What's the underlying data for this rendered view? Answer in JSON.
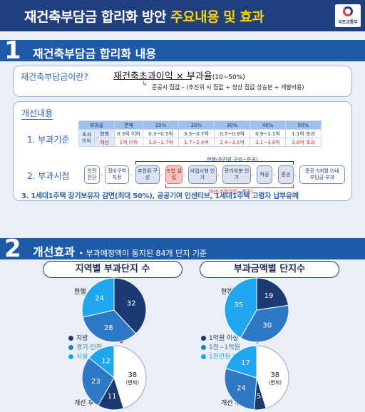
{
  "header": {
    "title_main": "재건축부담금 합리화 방안 ",
    "title_highlight": "주요내용 및 효과",
    "logo_text": "국토교통부"
  },
  "section1": {
    "num": "1",
    "title": "재건축부담금 합리화 내용"
  },
  "definition": {
    "label": "재건축부담금이란?",
    "formula_main": "재건축초과이익 × 부과율",
    "formula_range": "(10~50%)",
    "sub_lead": "준공시 집값",
    "sub_rest": " – (추진위 시 집값 + 정상 집값 상승분 + 개발비용)"
  },
  "improvement": {
    "label": "개선내용",
    "item1": "1. 부과기준",
    "item2": "2. 부과시점",
    "item3": "3. 1세대1주택 장기보유자 감면(최대 50%), 공공기여 인센티브, 1세대1주택 고령자 납부유예"
  },
  "rate_table": {
    "headers": [
      "부과율",
      "면제",
      "10%",
      "20%",
      "30%",
      "40%",
      "50%"
    ],
    "row_group": "초과이익",
    "current": {
      "label": "현행",
      "values": [
        "0.3억 이하",
        "0.3~0.5억",
        "0.5~0.7억",
        "0.7~0.9억",
        "0.9~1.1억",
        "1.1억 초과"
      ]
    },
    "improved": {
      "label": "개선",
      "values": [
        "1억 이하",
        "1.0~1.7억",
        "1.7~2.4억",
        "2.4~3.1억",
        "3.1~3.8억",
        "3.8억 초과"
      ]
    }
  },
  "timeline": {
    "current_note": "현행(추진위 구성~준공)",
    "improved_note": "개선(조합설립~준공)",
    "steps": [
      "안전 진단",
      "정비구역 지정",
      "추진위 구성",
      "조합 설립",
      "사업시행 인가",
      "관리처분 인가",
      "착공",
      "준공",
      "준공 5개월 이내 부담금 부과"
    ]
  },
  "section2": {
    "num": "2",
    "title": "개선효과",
    "subtitle": "• 부과예정액이 통지된 84개 단지 기준"
  },
  "effects": {
    "left": {
      "title": "지역별 부과단지 수",
      "current_label": "현행",
      "after_label": "개선 후",
      "legend": [
        "지방",
        "경기·인천",
        "서울"
      ]
    },
    "right": {
      "title": "부과금액별 단지수",
      "current_label": "현행",
      "after_label": "개선 후",
      "legend": [
        "1억원 이상",
        "1천~1억원",
        "1천만원 이하"
      ]
    }
  },
  "chart_data": [
    {
      "type": "pie",
      "title": "지역별 부과단지 수 - 현행",
      "labels": [
        "지방",
        "경기·인천",
        "서울"
      ],
      "values": [
        32,
        28,
        24
      ]
    },
    {
      "type": "pie",
      "title": "지역별 부과단지 수 - 개선 후",
      "labels": [
        "면제",
        "지방",
        "경기·인천",
        "서울"
      ],
      "values": [
        38,
        11,
        23,
        12
      ],
      "value_notes": [
        "(면제)",
        "",
        "",
        ""
      ]
    },
    {
      "type": "pie",
      "title": "부과금액별 단지수 - 현행",
      "labels": [
        "1억원 이상",
        "1천~1억원",
        "1천만원 이하"
      ],
      "values": [
        19,
        30,
        35
      ]
    },
    {
      "type": "pie",
      "title": "부과금액별 단지수 - 개선 후",
      "labels": [
        "면제",
        "1억원 이상",
        "1천~1억원",
        "1천만원 이하"
      ],
      "values": [
        38,
        5,
        24,
        17
      ],
      "value_notes": [
        "(면제)",
        "",
        "",
        ""
      ]
    }
  ],
  "colors": {
    "navy": "#1b3a73",
    "blue": "#2f78c4",
    "light_blue": "#1ea7ee",
    "white": "#ffffff",
    "accent_red": "#e23a3a",
    "title_yellow": "#ffd200"
  }
}
